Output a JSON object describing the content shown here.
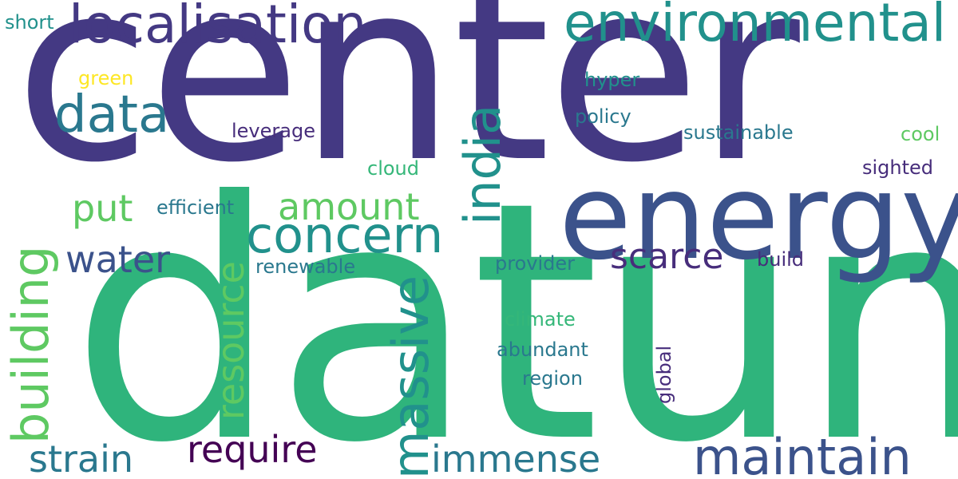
{
  "words": {
    "center": "center",
    "datum": "datum",
    "energy": "energy",
    "localisation": "localisation",
    "environmental": "environmental",
    "data": "data",
    "india": "india",
    "concern": "concern",
    "massive": "massive",
    "maintain": "maintain",
    "building": "building",
    "resource": "resource",
    "put": "put",
    "amount": "amount",
    "water": "water",
    "scarce": "scarce",
    "require": "require",
    "strain": "strain",
    "immense": "immense",
    "short": "short",
    "green": "green",
    "leverage": "leverage",
    "cloud": "cloud",
    "hyper": "hyper",
    "policy": "policy",
    "sustainable": "sustainable",
    "cool": "cool",
    "sighted": "sighted",
    "efficient": "efficient",
    "renewable": "renewable",
    "provider": "provider",
    "build": "build",
    "climate": "climate",
    "abundant": "abundant",
    "region": "region",
    "global": "global"
  }
}
